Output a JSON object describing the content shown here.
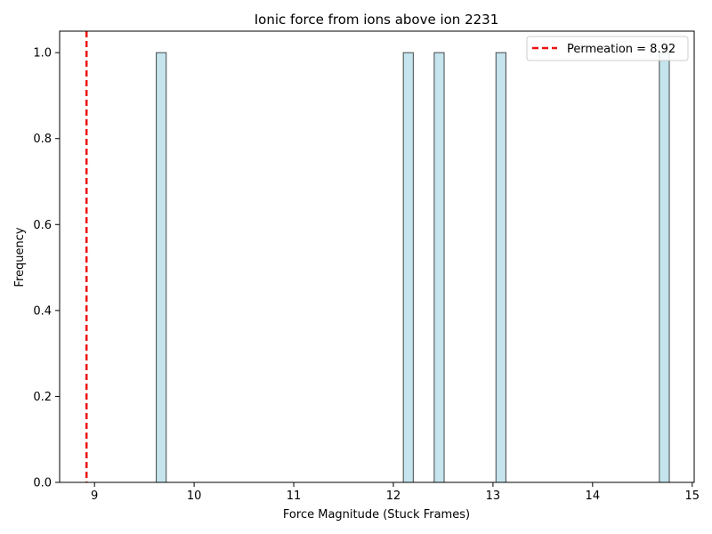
{
  "chart_data": {
    "type": "bar",
    "title": "Ionic force from ions above ion 2231",
    "xlabel": "Force Magnitude (Stuck Frames)",
    "ylabel": "Frequency",
    "xlim": [
      8.65,
      15.02
    ],
    "ylim": [
      0,
      1.05
    ],
    "xticks": [
      9,
      10,
      11,
      12,
      13,
      14,
      15
    ],
    "yticks": [
      0.0,
      0.2,
      0.4,
      0.6,
      0.8,
      1.0
    ],
    "xtick_labels": [
      "9",
      "10",
      "11",
      "12",
      "13",
      "14",
      "15"
    ],
    "ytick_labels": [
      "0.0",
      "0.2",
      "0.4",
      "0.6",
      "0.8",
      "1.0"
    ],
    "bins": [
      {
        "x0": 9.62,
        "x1": 9.72,
        "count": 1
      },
      {
        "x0": 12.1,
        "x1": 12.2,
        "count": 1
      },
      {
        "x0": 12.41,
        "x1": 12.51,
        "count": 1
      },
      {
        "x0": 13.03,
        "x1": 13.13,
        "count": 1
      },
      {
        "x0": 14.67,
        "x1": 14.77,
        "count": 1
      }
    ],
    "bar_color": "#add8e6",
    "bar_edge_color": "#000000",
    "permeation": {
      "value": 8.92,
      "color": "#ee1111",
      "label": "Permeation = 8.92"
    },
    "legend": {
      "location": "top-right",
      "entries": [
        "Permeation = 8.92"
      ]
    }
  }
}
